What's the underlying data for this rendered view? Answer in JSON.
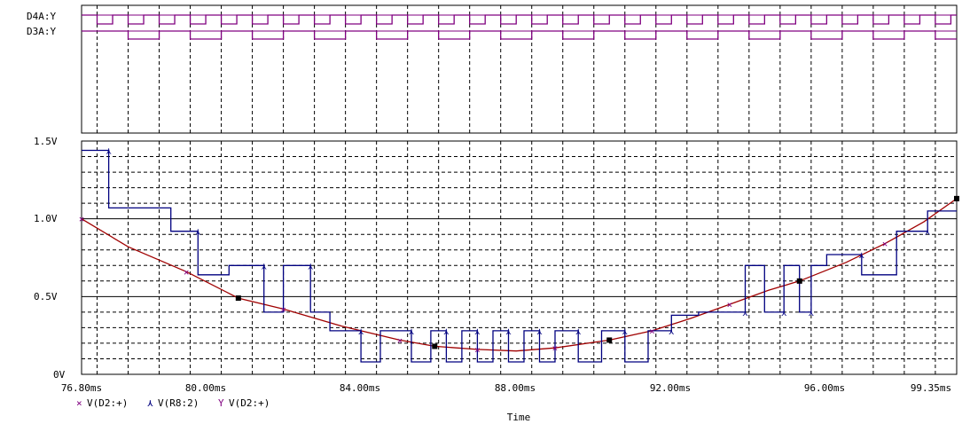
{
  "digital": {
    "signals": [
      "D4A:Y",
      "D3A:Y"
    ]
  },
  "analog": {
    "y_ticks": [
      "1.5V",
      "1.0V",
      "0.5V",
      "0V"
    ],
    "x_ticks": [
      "76.80ms",
      "80.00ms",
      "84.00ms",
      "88.00ms",
      "92.00ms",
      "96.00ms",
      "99.35ms"
    ],
    "xlabel": "Time"
  },
  "legend": [
    {
      "marker": "×",
      "label": "V(D2:+)"
    },
    {
      "marker": "⋏",
      "label": "V(R8:2)"
    },
    {
      "marker": "Y",
      "label": "V(D2:+)"
    }
  ],
  "colors": {
    "grid": "#000000",
    "digital_trace": "#800080",
    "red_trace": "#a00000",
    "blue_trace": "#000080",
    "marker": "#000000"
  },
  "chart_data": {
    "type": "line",
    "xlim": [
      76.8,
      99.35
    ],
    "ylim": [
      0,
      1.5
    ],
    "xlabel": "Time",
    "series": [
      {
        "name": "V(D2:+)",
        "kind": "smooth",
        "x": [
          76.8,
          78.0,
          79.5,
          80.84,
          82.0,
          83.5,
          85.0,
          85.9,
          87.0,
          88.0,
          89.0,
          90.4,
          91.5,
          92.5,
          93.5,
          94.5,
          95.3,
          96.5,
          97.5,
          98.5,
          99.35
        ],
        "y": [
          1.0,
          0.82,
          0.66,
          0.49,
          0.42,
          0.31,
          0.22,
          0.18,
          0.16,
          0.15,
          0.17,
          0.22,
          0.28,
          0.36,
          0.45,
          0.54,
          0.6,
          0.72,
          0.84,
          0.98,
          1.13
        ]
      },
      {
        "name": "V(R8:2)",
        "kind": "step",
        "x": [
          76.8,
          77.5,
          77.5,
          79.1,
          79.1,
          79.8,
          79.8,
          80.6,
          80.6,
          81.5,
          81.5,
          82.0,
          82.0,
          82.7,
          82.7,
          83.2,
          83.2,
          84.0,
          84.0,
          84.5,
          84.5,
          85.3,
          85.3,
          85.8,
          85.8,
          86.2,
          86.2,
          86.6,
          86.6,
          87.0,
          87.0,
          87.4,
          87.4,
          87.8,
          87.8,
          88.2,
          88.2,
          88.6,
          88.6,
          89.0,
          89.0,
          89.6,
          89.6,
          90.2,
          90.2,
          90.8,
          90.8,
          91.4,
          91.4,
          92.0,
          92.0,
          92.7,
          92.7,
          93.9,
          93.9,
          94.4,
          94.4,
          94.9,
          94.9,
          95.3,
          95.3,
          95.6,
          95.6,
          96.0,
          96.0,
          96.9,
          96.9,
          97.8,
          97.8,
          98.6,
          98.6,
          99.35
        ],
        "y": [
          1.44,
          1.44,
          1.07,
          1.07,
          0.92,
          0.92,
          0.64,
          0.64,
          0.7,
          0.7,
          0.4,
          0.4,
          0.7,
          0.7,
          0.4,
          0.4,
          0.28,
          0.28,
          0.08,
          0.08,
          0.28,
          0.28,
          0.08,
          0.08,
          0.28,
          0.28,
          0.08,
          0.08,
          0.28,
          0.28,
          0.08,
          0.08,
          0.28,
          0.28,
          0.08,
          0.08,
          0.28,
          0.28,
          0.08,
          0.08,
          0.28,
          0.28,
          0.08,
          0.08,
          0.28,
          0.28,
          0.08,
          0.08,
          0.28,
          0.28,
          0.38,
          0.38,
          0.4,
          0.4,
          0.7,
          0.7,
          0.4,
          0.4,
          0.7,
          0.7,
          0.4,
          0.4,
          0.7,
          0.7,
          0.77,
          0.77,
          0.64,
          0.64,
          0.92,
          0.92,
          1.05,
          1.05
        ]
      }
    ],
    "squares": {
      "x": [
        80.84,
        85.9,
        90.4,
        95.3,
        99.35
      ],
      "y": [
        0.49,
        0.18,
        0.22,
        0.6,
        1.13
      ]
    },
    "digital_traces": [
      {
        "name": "D4A:Y",
        "period_ms": 0.8,
        "phase_ms": 0.0
      },
      {
        "name": "D3A:Y",
        "period_ms": 1.6,
        "phase_ms": 0.4
      }
    ]
  }
}
